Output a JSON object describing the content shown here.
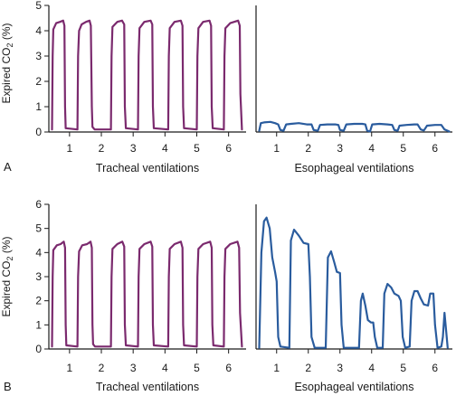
{
  "colors": {
    "tracheal": "#7b2a6e",
    "esophageal": "#2a5c9e",
    "axis": "#1a1a1a"
  },
  "chart_data": [
    {
      "type": "line",
      "panel_letter": "A",
      "xlabel": "Tracheal ventilations",
      "ylabel_main": "Expired CO",
      "ylabel_sub": "2",
      "ylabel_unit": " (%)",
      "ylim": [
        0,
        5
      ],
      "yticks": [
        "0",
        "1",
        "2",
        "3",
        "4",
        "5"
      ],
      "xlim": [
        0.35,
        6.55
      ],
      "xticks": [
        "1",
        "2",
        "3",
        "4",
        "5",
        "6"
      ],
      "series": [
        {
          "color": "tracheal",
          "points": [
            [
              0.45,
              0.1
            ],
            [
              0.47,
              3.0
            ],
            [
              0.49,
              4.05
            ],
            [
              0.58,
              4.3
            ],
            [
              0.7,
              4.35
            ],
            [
              0.8,
              4.4
            ],
            [
              0.84,
              4.2
            ],
            [
              0.86,
              1.0
            ],
            [
              0.88,
              0.15
            ],
            [
              1.25,
              0.1
            ],
            [
              1.27,
              3.0
            ],
            [
              1.3,
              4.0
            ],
            [
              1.38,
              4.25
            ],
            [
              1.52,
              4.35
            ],
            [
              1.63,
              4.4
            ],
            [
              1.67,
              4.2
            ],
            [
              1.7,
              1.0
            ],
            [
              1.72,
              0.2
            ],
            [
              1.79,
              0.1
            ],
            [
              2.3,
              0.1
            ],
            [
              2.32,
              3.0
            ],
            [
              2.35,
              4.15
            ],
            [
              2.5,
              4.35
            ],
            [
              2.65,
              4.4
            ],
            [
              2.72,
              4.25
            ],
            [
              2.74,
              1.0
            ],
            [
              2.77,
              0.15
            ],
            [
              3.15,
              0.1
            ],
            [
              3.17,
              3.0
            ],
            [
              3.2,
              4.1
            ],
            [
              3.35,
              4.35
            ],
            [
              3.55,
              4.4
            ],
            [
              3.6,
              4.25
            ],
            [
              3.62,
              1.0
            ],
            [
              3.65,
              0.15
            ],
            [
              4.1,
              0.1
            ],
            [
              4.12,
              3.0
            ],
            [
              4.15,
              4.1
            ],
            [
              4.3,
              4.35
            ],
            [
              4.5,
              4.4
            ],
            [
              4.55,
              4.2
            ],
            [
              4.57,
              1.0
            ],
            [
              4.6,
              0.15
            ],
            [
              5.0,
              0.1
            ],
            [
              5.02,
              3.0
            ],
            [
              5.05,
              4.1
            ],
            [
              5.2,
              4.35
            ],
            [
              5.4,
              4.4
            ],
            [
              5.45,
              4.2
            ],
            [
              5.47,
              1.0
            ],
            [
              5.5,
              0.15
            ],
            [
              5.85,
              0.1
            ],
            [
              5.87,
              3.0
            ],
            [
              5.9,
              4.1
            ],
            [
              6.05,
              4.3
            ],
            [
              6.3,
              4.4
            ],
            [
              6.35,
              4.2
            ],
            [
              6.37,
              1.5
            ],
            [
              6.42,
              0.1
            ]
          ]
        }
      ]
    },
    {
      "type": "line",
      "panel_letter": "",
      "xlabel": "Esophageal ventilations",
      "ylabel_main": "",
      "ylabel_sub": "",
      "ylabel_unit": "",
      "ylim": [
        0,
        5
      ],
      "yticks": [],
      "xlim": [
        0.35,
        6.55
      ],
      "xticks": [
        "1",
        "2",
        "3",
        "4",
        "5",
        "6"
      ],
      "series": [
        {
          "color": "esophageal",
          "points": [
            [
              0.45,
              0.05
            ],
            [
              0.5,
              0.35
            ],
            [
              0.6,
              0.38
            ],
            [
              0.8,
              0.4
            ],
            [
              0.95,
              0.35
            ],
            [
              1.05,
              0.3
            ],
            [
              1.12,
              0.08
            ],
            [
              1.22,
              0.05
            ],
            [
              1.3,
              0.3
            ],
            [
              1.45,
              0.32
            ],
            [
              1.7,
              0.35
            ],
            [
              1.95,
              0.3
            ],
            [
              2.1,
              0.3
            ],
            [
              2.17,
              0.08
            ],
            [
              2.3,
              0.05
            ],
            [
              2.37,
              0.28
            ],
            [
              2.6,
              0.3
            ],
            [
              2.85,
              0.3
            ],
            [
              2.95,
              0.28
            ],
            [
              3.0,
              0.08
            ],
            [
              3.12,
              0.05
            ],
            [
              3.2,
              0.3
            ],
            [
              3.45,
              0.32
            ],
            [
              3.7,
              0.32
            ],
            [
              3.8,
              0.3
            ],
            [
              3.86,
              0.05
            ],
            [
              3.95,
              0.02
            ],
            [
              4.02,
              0.3
            ],
            [
              4.25,
              0.32
            ],
            [
              4.5,
              0.3
            ],
            [
              4.65,
              0.28
            ],
            [
              4.72,
              0.08
            ],
            [
              4.82,
              0.05
            ],
            [
              4.88,
              0.25
            ],
            [
              5.1,
              0.28
            ],
            [
              5.35,
              0.3
            ],
            [
              5.45,
              0.3
            ],
            [
              5.55,
              0.1
            ],
            [
              5.65,
              0.06
            ],
            [
              5.75,
              0.25
            ],
            [
              6.0,
              0.28
            ],
            [
              6.2,
              0.28
            ],
            [
              6.3,
              0.1
            ],
            [
              6.45,
              0.02
            ]
          ]
        }
      ]
    },
    {
      "type": "line",
      "panel_letter": "B",
      "xlabel": "Tracheal ventilations",
      "ylabel_main": "Expired CO",
      "ylabel_sub": "2",
      "ylabel_unit": " (%)",
      "ylim": [
        0,
        6
      ],
      "yticks": [
        "0",
        "1",
        "2",
        "3",
        "4",
        "5",
        "6"
      ],
      "xlim": [
        0.35,
        6.55
      ],
      "xticks": [
        "1",
        "2",
        "3",
        "4",
        "5",
        "6"
      ],
      "series": [
        {
          "color": "tracheal",
          "points": [
            [
              0.45,
              0.1
            ],
            [
              0.47,
              3.0
            ],
            [
              0.49,
              4.1
            ],
            [
              0.6,
              4.3
            ],
            [
              0.72,
              4.35
            ],
            [
              0.82,
              4.45
            ],
            [
              0.86,
              4.2
            ],
            [
              0.88,
              1.0
            ],
            [
              0.9,
              0.15
            ],
            [
              1.25,
              0.1
            ],
            [
              1.27,
              3.0
            ],
            [
              1.3,
              4.05
            ],
            [
              1.4,
              4.3
            ],
            [
              1.55,
              4.35
            ],
            [
              1.66,
              4.45
            ],
            [
              1.7,
              4.2
            ],
            [
              1.72,
              1.0
            ],
            [
              1.74,
              0.2
            ],
            [
              1.8,
              0.1
            ],
            [
              2.3,
              0.1
            ],
            [
              2.32,
              3.0
            ],
            [
              2.35,
              4.15
            ],
            [
              2.5,
              4.35
            ],
            [
              2.66,
              4.45
            ],
            [
              2.72,
              4.25
            ],
            [
              2.74,
              1.0
            ],
            [
              2.77,
              0.15
            ],
            [
              3.15,
              0.1
            ],
            [
              3.17,
              3.0
            ],
            [
              3.2,
              4.15
            ],
            [
              3.35,
              4.35
            ],
            [
              3.55,
              4.45
            ],
            [
              3.6,
              4.25
            ],
            [
              3.62,
              1.0
            ],
            [
              3.65,
              0.15
            ],
            [
              4.1,
              0.1
            ],
            [
              4.12,
              3.0
            ],
            [
              4.15,
              4.15
            ],
            [
              4.3,
              4.35
            ],
            [
              4.5,
              4.45
            ],
            [
              4.55,
              4.2
            ],
            [
              4.57,
              1.0
            ],
            [
              4.6,
              0.15
            ],
            [
              5.0,
              0.1
            ],
            [
              5.02,
              3.0
            ],
            [
              5.05,
              4.15
            ],
            [
              5.2,
              4.35
            ],
            [
              5.42,
              4.45
            ],
            [
              5.47,
              4.2
            ],
            [
              5.49,
              1.0
            ],
            [
              5.52,
              0.15
            ],
            [
              5.85,
              0.1
            ],
            [
              5.87,
              3.0
            ],
            [
              5.9,
              4.15
            ],
            [
              6.05,
              4.35
            ],
            [
              6.28,
              4.45
            ],
            [
              6.33,
              4.2
            ],
            [
              6.36,
              1.5
            ],
            [
              6.42,
              0.1
            ]
          ]
        }
      ]
    },
    {
      "type": "line",
      "panel_letter": "",
      "xlabel": "Esophageal ventilations",
      "ylabel_main": "",
      "ylabel_sub": "",
      "ylabel_unit": "",
      "ylim": [
        0,
        6
      ],
      "yticks": [],
      "xlim": [
        0.35,
        6.55
      ],
      "xticks": [
        "1",
        "2",
        "3",
        "4",
        "5",
        "6"
      ],
      "series": [
        {
          "color": "esophageal",
          "points": [
            [
              0.45,
              0.05
            ],
            [
              0.52,
              4.0
            ],
            [
              0.6,
              5.3
            ],
            [
              0.68,
              5.45
            ],
            [
              0.78,
              5.0
            ],
            [
              0.86,
              3.8
            ],
            [
              0.95,
              3.2
            ],
            [
              1.0,
              2.8
            ],
            [
              1.05,
              0.5
            ],
            [
              1.12,
              0.1
            ],
            [
              1.4,
              0.05
            ],
            [
              1.45,
              4.5
            ],
            [
              1.55,
              4.95
            ],
            [
              1.7,
              4.7
            ],
            [
              1.85,
              4.4
            ],
            [
              2.0,
              4.35
            ],
            [
              2.05,
              3.0
            ],
            [
              2.1,
              0.5
            ],
            [
              2.2,
              0.05
            ],
            [
              2.55,
              0.05
            ],
            [
              2.62,
              3.8
            ],
            [
              2.72,
              4.05
            ],
            [
              2.82,
              3.6
            ],
            [
              2.9,
              3.2
            ],
            [
              3.0,
              3.15
            ],
            [
              3.05,
              1.0
            ],
            [
              3.12,
              0.05
            ],
            [
              3.6,
              0.05
            ],
            [
              3.66,
              2.0
            ],
            [
              3.72,
              2.3
            ],
            [
              3.8,
              1.8
            ],
            [
              3.88,
              1.2
            ],
            [
              3.98,
              1.1
            ],
            [
              4.05,
              1.1
            ],
            [
              4.1,
              0.5
            ],
            [
              4.18,
              0.05
            ],
            [
              4.35,
              0.05
            ],
            [
              4.4,
              2.3
            ],
            [
              4.5,
              2.7
            ],
            [
              4.62,
              2.55
            ],
            [
              4.72,
              2.3
            ],
            [
              4.85,
              2.2
            ],
            [
              4.92,
              2.0
            ],
            [
              4.98,
              0.5
            ],
            [
              5.06,
              0.05
            ],
            [
              5.2,
              0.1
            ],
            [
              5.26,
              2.0
            ],
            [
              5.35,
              2.4
            ],
            [
              5.45,
              2.4
            ],
            [
              5.55,
              2.1
            ],
            [
              5.65,
              1.85
            ],
            [
              5.78,
              1.8
            ],
            [
              5.85,
              2.3
            ],
            [
              5.95,
              2.3
            ],
            [
              6.0,
              1.0
            ],
            [
              6.08,
              0.05
            ],
            [
              6.2,
              0.1
            ],
            [
              6.25,
              0.5
            ],
            [
              6.3,
              1.5
            ],
            [
              6.4,
              0.05
            ]
          ]
        }
      ]
    }
  ]
}
